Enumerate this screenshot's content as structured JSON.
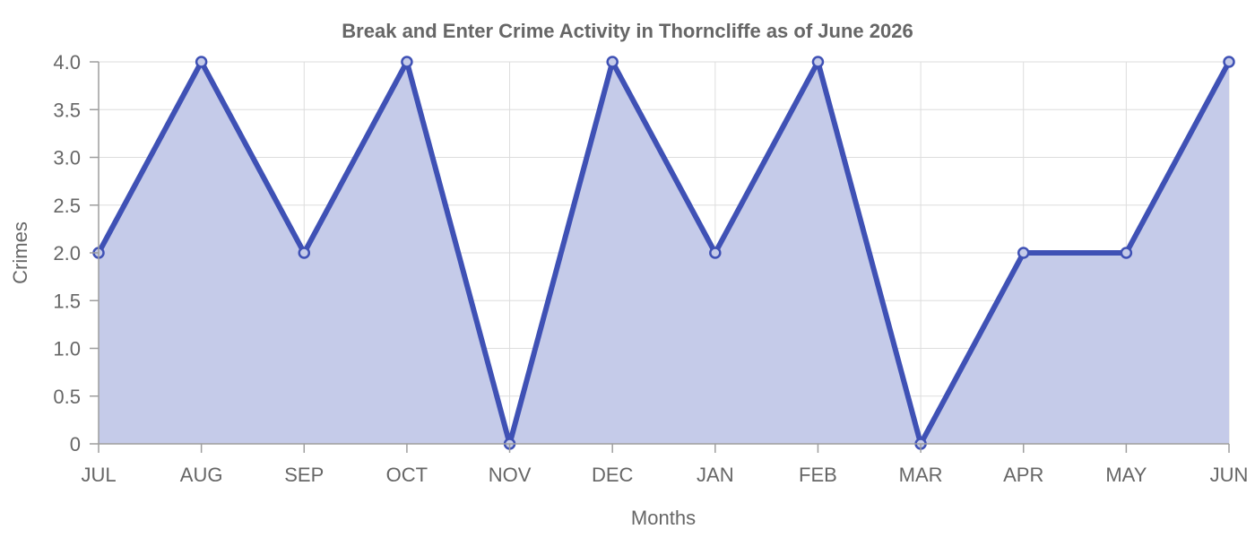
{
  "chart_data": {
    "type": "area",
    "title": "Break and Enter Crime Activity in Thorncliffe as of June 2026",
    "xlabel": "Months",
    "ylabel": "Crimes",
    "categories": [
      "JUL",
      "AUG",
      "SEP",
      "OCT",
      "NOV",
      "DEC",
      "JAN",
      "FEB",
      "MAR",
      "APR",
      "MAY",
      "JUN"
    ],
    "series": [
      {
        "values": [
          2,
          4,
          2,
          4,
          0,
          4,
          2,
          4,
          0,
          2,
          2,
          4
        ]
      }
    ],
    "ylim": [
      0,
      4
    ],
    "yticks": [
      "0",
      "0.5",
      "1.0",
      "1.5",
      "2.0",
      "2.5",
      "3.0",
      "3.5",
      "4.0"
    ],
    "grid": true,
    "legend": "none",
    "colors": {
      "line": "#3f51b5",
      "fill": "#c5cbe9",
      "point_fill": "#c5cbe9",
      "grid": "#dddddd",
      "axis": "#9e9e9e",
      "text": "#666666"
    }
  }
}
